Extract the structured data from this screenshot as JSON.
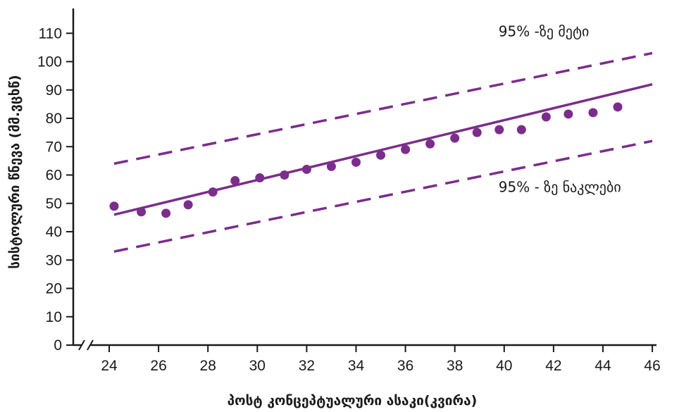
{
  "chart_data": {
    "type": "scatter",
    "xlabel": "პოსტ კონცეპტუალური ასაკი(კვირა)",
    "ylabel": "სისტოლური წნევა (მმ.ვცხწ)",
    "xlim": [
      23,
      46
    ],
    "ylim": [
      0,
      115
    ],
    "x_ticks": [
      24,
      26,
      28,
      30,
      32,
      34,
      36,
      38,
      40,
      42,
      44,
      46
    ],
    "y_ticks": [
      0,
      10,
      20,
      30,
      40,
      50,
      60,
      70,
      80,
      90,
      100,
      110
    ],
    "axis_break": true,
    "grid": false,
    "colors": {
      "series": "#7b2d8b",
      "axis": "#1a1a1a"
    },
    "points": {
      "x": [
        24.2,
        25.3,
        26.3,
        27.2,
        28.2,
        29.1,
        30.1,
        31.1,
        32.0,
        33.0,
        34.0,
        35.0,
        36.0,
        37.0,
        38.0,
        38.9,
        39.8,
        40.7,
        41.7,
        42.6,
        43.6,
        44.6
      ],
      "y": [
        49,
        47,
        46.5,
        49.5,
        54,
        58,
        59,
        60,
        62,
        63,
        64.5,
        67,
        69,
        71,
        73,
        75,
        76,
        76,
        80.5,
        81.5,
        82,
        84
      ]
    },
    "lines": [
      {
        "style": "solid",
        "x": [
          24.2,
          46
        ],
        "y": [
          46,
          92
        ]
      },
      {
        "style": "dashed",
        "x": [
          24.2,
          46
        ],
        "y": [
          64,
          103
        ]
      },
      {
        "style": "dashed",
        "x": [
          24.2,
          46
        ],
        "y": [
          33,
          72
        ]
      }
    ],
    "annotations": [
      {
        "text": "95% -ზე მეტი",
        "x": 40,
        "y": 109
      },
      {
        "text": "95% - ზე ნაკლები",
        "x": 40,
        "y": 54
      }
    ]
  }
}
